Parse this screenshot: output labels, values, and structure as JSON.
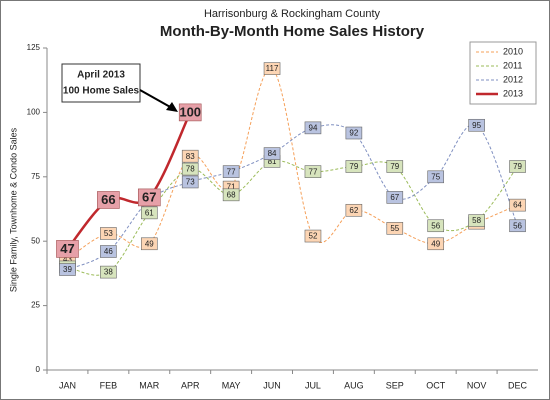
{
  "chart_data": {
    "type": "line",
    "subtitle": "Harrisonburg & Rockingham County",
    "title": "Month-By-Month Home Sales History",
    "y_label": "Single Family, Townhome & Condo Sales",
    "annotation": [
      "April 2013",
      "100 Home Sales"
    ],
    "categories": [
      "JAN",
      "FEB",
      "MAR",
      "APR",
      "MAY",
      "JUN",
      "JUL",
      "AUG",
      "SEP",
      "OCT",
      "NOV",
      "DEC"
    ],
    "ylim": [
      0,
      125
    ],
    "yticks": [
      0,
      25,
      50,
      75,
      100,
      125
    ],
    "grid": false,
    "legend": "upper right",
    "series": [
      {
        "name": "2010",
        "color": "#f5a05a",
        "label_fill": "#fcd5b4",
        "dashed": true,
        "values": [
          43,
          53,
          49,
          83,
          71,
          117,
          52,
          62,
          55,
          49,
          57,
          64
        ]
      },
      {
        "name": "2011",
        "color": "#9bbb59",
        "label_fill": "#d7e4bd",
        "dashed": true,
        "values": [
          40,
          38,
          61,
          78,
          68,
          81,
          77,
          79,
          79,
          56,
          58,
          79
        ]
      },
      {
        "name": "2012",
        "color": "#7f8fc0",
        "label_fill": "#b9c3e0",
        "dashed": true,
        "values": [
          39,
          46,
          66,
          73,
          77,
          84,
          94,
          92,
          67,
          75,
          95,
          56
        ]
      },
      {
        "name": "2013",
        "color": "#c0282d",
        "label_fill": "#e6a0a8",
        "dashed": false,
        "values": [
          47,
          66,
          67,
          100,
          null,
          null,
          null,
          null,
          null,
          null,
          null,
          null
        ]
      }
    ]
  }
}
